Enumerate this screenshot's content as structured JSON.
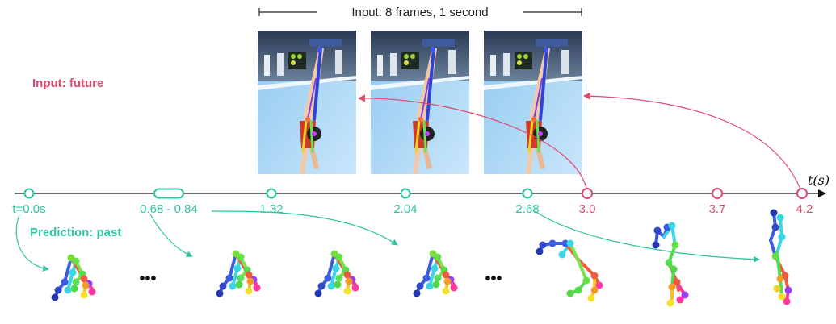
{
  "header": {
    "input_label": "Input: 8 frames, 1 second"
  },
  "labels": {
    "input_future": "Input: future",
    "prediction_past": "Prediction: past",
    "axis_label": "t(s)",
    "ellipsis": "•••"
  },
  "colors": {
    "past": "#2ec4a0",
    "future": "#e0486e",
    "axis": "#111111"
  },
  "timeline": {
    "past_ticks": [
      {
        "id": "t0",
        "label": "t=0.0s"
      },
      {
        "id": "t068",
        "label": "0.68 - 0.84"
      },
      {
        "id": "t132",
        "label": "1.32"
      },
      {
        "id": "t204",
        "label": "2.04"
      },
      {
        "id": "t268",
        "label": "2.68"
      }
    ],
    "future_ticks": [
      {
        "id": "t30",
        "label": "3.0"
      },
      {
        "id": "t37",
        "label": "3.7"
      },
      {
        "id": "t42",
        "label": "4.2"
      }
    ]
  },
  "input_frames": [
    {
      "id": "frame-1",
      "icon": "gymnast-handstand-photo"
    },
    {
      "id": "frame-2",
      "icon": "gymnast-handstand-photo"
    },
    {
      "id": "frame-3",
      "icon": "gymnast-handstand-photo"
    }
  ],
  "predicted_poses": [
    {
      "id": "pose-1",
      "icon": "skeleton-pose-icon"
    },
    {
      "id": "pose-2",
      "icon": "skeleton-pose-icon"
    },
    {
      "id": "pose-3",
      "icon": "skeleton-pose-icon"
    },
    {
      "id": "pose-4",
      "icon": "skeleton-pose-icon"
    },
    {
      "id": "pose-5",
      "icon": "skeleton-pose-icon"
    },
    {
      "id": "pose-6",
      "icon": "skeleton-pose-icon"
    },
    {
      "id": "pose-7",
      "icon": "skeleton-pose-icon"
    }
  ]
}
